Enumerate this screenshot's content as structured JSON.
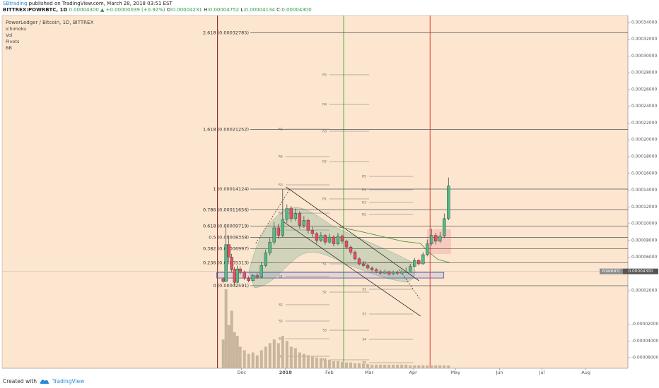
{
  "header": {
    "author": "SBtrading",
    "published": "published on TradingView.com, March 28, 2018 03:51 EST",
    "symbol": "BITTREX:POWRBTC, 1D",
    "last": "0.00004300",
    "change": "▲ +0.00000039 (+0.92%)",
    "ohlc": [
      {
        "label": "O:",
        "value": "0.00004231"
      },
      {
        "label": "H:",
        "value": "0.00004752"
      },
      {
        "label": "L:",
        "value": "0.00004134"
      },
      {
        "label": "C:",
        "value": "0.00004300"
      }
    ]
  },
  "legend": [
    "PowerLedger / Bitcoin, 1D, BITTREX",
    "Ichimoku",
    "Vol",
    "Pivots",
    "BB"
  ],
  "footer": {
    "created": "Created with",
    "brand": "TradingView"
  },
  "chart_data": {
    "type": "candlestick",
    "xlim": [
      -169,
      272.6
    ],
    "xticks": [
      {
        "value": 0,
        "label": "Dec"
      },
      {
        "value": 31,
        "label": "2018"
      },
      {
        "value": 62,
        "label": "Feb"
      },
      {
        "value": 90,
        "label": "Mar"
      },
      {
        "value": 121,
        "label": "Apr"
      },
      {
        "value": 151,
        "label": "May"
      },
      {
        "value": 182,
        "label": "Jun"
      },
      {
        "value": 212,
        "label": "Jul"
      },
      {
        "value": 243,
        "label": "Aug"
      }
    ],
    "ylim": [
      -7.26e-05,
      0.0003484
    ],
    "yticks": [
      {
        "value": 0.00034,
        "label": "0.00034000"
      },
      {
        "value": 0.00032,
        "label": "0.00032000"
      },
      {
        "value": 0.0003,
        "label": "0.00030000"
      },
      {
        "value": 0.00028,
        "label": "0.00028000"
      },
      {
        "value": 0.00026,
        "label": "0.00026000"
      },
      {
        "value": 0.00024,
        "label": "0.00024000"
      },
      {
        "value": 0.00022,
        "label": "0.00022000"
      },
      {
        "value": 0.0002,
        "label": "0.00020000"
      },
      {
        "value": 0.00018,
        "label": "0.00018000"
      },
      {
        "value": 0.00016,
        "label": "0.00016000"
      },
      {
        "value": 0.00014,
        "label": "0.00014000"
      },
      {
        "value": 0.00012,
        "label": "0.00012000"
      },
      {
        "value": 0.0001,
        "label": "0.00010000"
      },
      {
        "value": 8e-05,
        "label": "0.00008000"
      },
      {
        "value": 6e-05,
        "label": "0.00006000"
      },
      {
        "value": 2e-05,
        "label": "0.00002000"
      },
      {
        "value": -2e-05,
        "label": "-0.00002000"
      },
      {
        "value": -4e-05,
        "label": "-0.00004000"
      },
      {
        "value": -6e-05,
        "label": "-0.00006000"
      }
    ],
    "grid": false,
    "up_color": "#53b987",
    "down_color": "#eb4d5c",
    "candles": {
      "x": [
        -13,
        -11,
        -9,
        -7,
        -5,
        -3,
        -1,
        2,
        5,
        8,
        11,
        14,
        17,
        20,
        23,
        26,
        29,
        32,
        35,
        38,
        41,
        44,
        47,
        50,
        53,
        56,
        59,
        62,
        65,
        68,
        71,
        74,
        77,
        80,
        83,
        86,
        89,
        92,
        95,
        98,
        101,
        104,
        107,
        110,
        113,
        116,
        119,
        122,
        125,
        128,
        131,
        134,
        137,
        140,
        143,
        146
      ],
      "open": [
        3.4e-05,
        3.1e-05,
        7.5e-05,
        6e-05,
        4.5e-05,
        3e-05,
        4.6e-05,
        4.2e-05,
        3.5e-05,
        3.2e-05,
        3.8e-05,
        3.6e-05,
        5e-05,
        6.5e-05,
        7.8e-05,
        9.5e-05,
        8.6e-05,
        0.000105,
        0.000118,
        0.000106,
        0.000112,
        9.8e-05,
        0.000104,
        9.2e-05,
        8.8e-05,
        8e-05,
        8.6e-05,
        7.8e-05,
        8.4e-05,
        7.6e-05,
        8.5e-05,
        7.9e-05,
        7.2e-05,
        6.6e-05,
        5.8e-05,
        5.2e-05,
        5e-05,
        4.7e-05,
        4.5e-05,
        4.3e-05,
        4.1e-05,
        4.3e-05,
        4e-05,
        4.2e-05,
        4.1e-05,
        4.231e-05,
        4.3e-05,
        4.9e-05,
        5.6e-05,
        5.2e-05,
        6.3e-05,
        7.6e-05,
        8.6e-05,
        7.9e-05,
        8.5e-05,
        0.000106
      ],
      "high": [
        3.6e-05,
        9.9e-05,
        8.6e-05,
        6.4e-05,
        4.8e-05,
        5e-05,
        4.9e-05,
        4.4e-05,
        3.7e-05,
        4e-05,
        4.1e-05,
        5.4e-05,
        6.9e-05,
        8.3e-05,
        0.000102,
        0.0001,
        0.000141,
        0.000123,
        0.000121,
        0.000118,
        0.000115,
        0.000109,
        0.000106,
        9.6e-05,
        9e-05,
        9e-05,
        8.8e-05,
        8.8e-05,
        8.6e-05,
        8.9e-05,
        8.7e-05,
        8.1e-05,
        7.4e-05,
        6.8e-05,
        6e-05,
        5.4e-05,
        5.2e-05,
        4.9e-05,
        4.7e-05,
        4.5e-05,
        4.5e-05,
        4.4e-05,
        4.4e-05,
        4.4e-05,
        4.5e-05,
        4.752e-05,
        5.2e-05,
        5.9e-05,
        5.8e-05,
        6.6e-05,
        8.1e-05,
        9.4e-05,
        8.9e-05,
        9e-05,
        0.000112,
        0.000155
      ],
      "low": [
        2.9e-05,
        3e-05,
        5.5e-05,
        4.2e-05,
        2.59e-05,
        2.9e-05,
        3.9e-05,
        3.3e-05,
        3e-05,
        3.1e-05,
        3.4e-05,
        3.5e-05,
        4.8e-05,
        6.2e-05,
        7.5e-05,
        8.2e-05,
        8.4e-05,
        0.000101,
        0.000102,
        0.000103,
        9.4e-05,
        9.5e-05,
        8.8e-05,
        8.4e-05,
        7.6e-05,
        7.8e-05,
        7.5e-05,
        7.6e-05,
        7.3e-05,
        7.4e-05,
        7.6e-05,
        7e-05,
        6.3e-05,
        5.6e-05,
        5e-05,
        4.8e-05,
        4.5e-05,
        4.3e-05,
        4.1e-05,
        3.9e-05,
        4e-05,
        3.8e-05,
        3.9e-05,
        3.9e-05,
        4e-05,
        4.134e-05,
        4.2e-05,
        4.8e-05,
        5e-05,
        5.1e-05,
        6.1e-05,
        7.4e-05,
        7.5e-05,
        7.7e-05,
        8.3e-05,
        0.000104
      ],
      "close": [
        3.1e-05,
        7.5e-05,
        6e-05,
        4.5e-05,
        3e-05,
        4.6e-05,
        4.2e-05,
        3.5e-05,
        3.2e-05,
        3.8e-05,
        3.6e-05,
        5e-05,
        6.5e-05,
        7.8e-05,
        9.5e-05,
        8.6e-05,
        0.000105,
        0.000118,
        0.000106,
        0.000112,
        9.8e-05,
        0.000104,
        9.2e-05,
        8.8e-05,
        8e-05,
        8.6e-05,
        7.8e-05,
        8.4e-05,
        7.6e-05,
        8.5e-05,
        7.9e-05,
        7.2e-05,
        6.6e-05,
        5.8e-05,
        5.2e-05,
        5e-05,
        4.7e-05,
        4.5e-05,
        4.3e-05,
        4.1e-05,
        4.3e-05,
        4e-05,
        4.2e-05,
        4.1e-05,
        4.3e-05,
        4.3e-05,
        4.9e-05,
        5.6e-05,
        5.2e-05,
        6.3e-05,
        7.6e-05,
        8.6e-05,
        7.9e-05,
        8.5e-05,
        0.000106,
        0.000145
      ],
      "volume": [
        40,
        110,
        60,
        80,
        50,
        45,
        30,
        25,
        20,
        22,
        18,
        25,
        30,
        35,
        40,
        35,
        45,
        38,
        30,
        28,
        22,
        20,
        18,
        16,
        15,
        14,
        12,
        12,
        10,
        10,
        9,
        8,
        8,
        7,
        7,
        6,
        6,
        5,
        5,
        5,
        5,
        5,
        5,
        5,
        5,
        5,
        4,
        4,
        4,
        4,
        4,
        4,
        4,
        4,
        4,
        4
      ]
    },
    "volume_color": "#c9b49e",
    "fib": [
      {
        "label": "2.618 (0.00032785)",
        "value": 0.00032785
      },
      {
        "label": "1.618 (0.00021252)",
        "value": 0.00021252
      },
      {
        "label": "1 (0.00014124)",
        "value": 0.00014124
      },
      {
        "label": "0.786 (0.00011656)",
        "value": 0.00011656
      },
      {
        "label": "0.618 (0.00009719)",
        "value": 9.719e-05
      },
      {
        "label": "0.5 (0.00008358)",
        "value": 8.358e-05
      },
      {
        "label": "0.382 (0.00006997)",
        "value": 6.997e-05
      },
      {
        "label": "0.236 (0.00005313)",
        "value": 5.313e-05
      },
      {
        "label": "0 (0.00002591)",
        "value": 2.591e-05
      }
    ],
    "fib_color": "#555555",
    "pivots": [
      {
        "start": 31,
        "end": 62,
        "levels": [
          {
            "label": "R5",
            "value": 0.0002128
          },
          {
            "label": "R4",
            "value": 0.00018
          },
          {
            "label": "R3",
            "value": 0.0001463
          },
          {
            "label": "R2",
            "value": 0.0001126
          },
          {
            "label": "R1",
            "value": 9.24e-05
          },
          {
            "label": "S1",
            "value": 3.68e-05
          },
          {
            "label": "S2",
            "value": 3.2e-06
          },
          {
            "label": "S3",
            "value": -1.62e-05
          },
          {
            "label": "S4",
            "value": -3.73e-05
          },
          {
            "label": "S5",
            "value": -5.83e-05
          }
        ]
      },
      {
        "start": 62,
        "end": 90,
        "levels": [
          {
            "label": "R5",
            "value": 0.0002777
          },
          {
            "label": "R4",
            "value": 0.0002423
          },
          {
            "label": "R3",
            "value": 0.0002103
          },
          {
            "label": "R2",
            "value": 0.0001741
          },
          {
            "label": "R1",
            "value": 0.0001295
          },
          {
            "label": "S1",
            "value": 5.2e-05
          },
          {
            "label": "S2",
            "value": 1.83e-05
          },
          {
            "label": "S3",
            "value": -2.72e-05
          },
          {
            "label": "S4",
            "value": -6.25e-05
          }
        ]
      },
      {
        "start": 90,
        "end": 121,
        "levels": [
          {
            "label": "R5",
            "value": 0.0001564
          },
          {
            "label": "R4",
            "value": 0.0001404
          },
          {
            "label": "R3",
            "value": 0.0001253
          },
          {
            "label": "R2",
            "value": 0.0001109
          },
          {
            "label": "S1",
            "value": 5.37e-05
          },
          {
            "label": "S2",
            "value": 2.17e-05
          },
          {
            "label": "S3",
            "value": -7.8e-06
          },
          {
            "label": "S4",
            "value": -3.81e-05
          },
          {
            "label": "S5",
            "value": -6.59e-05
          }
        ]
      }
    ],
    "pivot_color": "#777777",
    "vlines": [
      {
        "x": -17,
        "color": "#8b1a1a"
      },
      {
        "x": 72,
        "color": "#4caf50"
      },
      {
        "x": 133,
        "color": "#e53935"
      }
    ],
    "zone": {
      "x": [
        -17.5,
        142.7
      ],
      "values": [
        3.51e-05,
        4.18e-05
      ],
      "color": "#3f51b5"
    },
    "trendlines": [
      {
        "x": [
          31.4,
          125.2
        ],
        "values": [
          0.0001438,
          3.18e-05
        ],
        "dashed": false
      },
      {
        "x": [
          27.9,
          126.2
        ],
        "values": [
          0.0001042,
          -1.03e-05
        ],
        "dashed": false
      },
      {
        "x": [
          10,
          33.9
        ],
        "values": [
          7.64e-05,
          0.000141
        ],
        "dashed": true
      },
      {
        "x": [
          111.3,
          126.2
        ],
        "values": [
          4.53e-05,
          9.1e-06
        ],
        "dashed": true
      }
    ],
    "ichimoku": {
      "color": "#4a9a3f",
      "x": [
        68.9,
        83.8,
        98.8,
        113.8,
        126.2,
        131.2,
        138.7,
        146.7
      ],
      "values": [
        9.58e-05,
        9.07e-05,
        8.48e-05,
        7.89e-05,
        7.64e-05,
        6.72e-05,
        5.71e-05,
        5.37e-05
      ]
    },
    "price_tag": {
      "name": "POWRBTC",
      "label": "0.00004300",
      "value": 4.3e-05
    }
  }
}
